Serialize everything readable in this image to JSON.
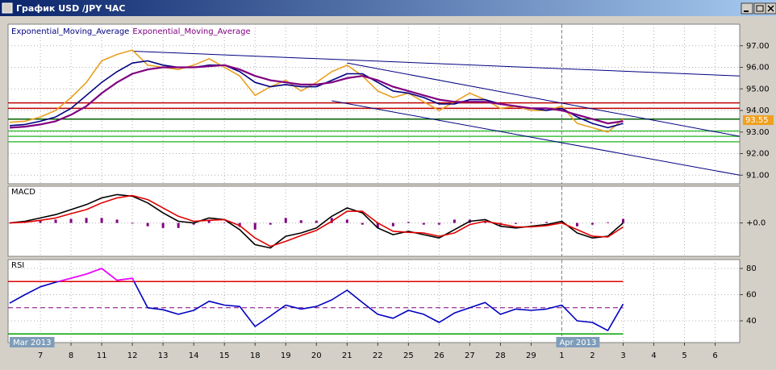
{
  "window": {
    "title": "График USD /JPY ЧАС"
  },
  "chart_data": [
    {
      "type": "line",
      "x": [
        -1,
        -0.5,
        0,
        0.5,
        1,
        1.5,
        2,
        2.5,
        3,
        3.5,
        4,
        4.5,
        5,
        5.5,
        6,
        6.5,
        7,
        7.5,
        8,
        8.5,
        9,
        9.5,
        10,
        10.5,
        11,
        11.5,
        12,
        12.5,
        13,
        13.5,
        14,
        14.5,
        15,
        15.5,
        16,
        16.5,
        17,
        17.5,
        18,
        18.5,
        19
      ],
      "series": [
        {
          "color": "#e8a020",
          "values": [
            93.45,
            93.5,
            93.7,
            94.0,
            94.6,
            95.3,
            96.3,
            96.6,
            96.8,
            96.1,
            96.0,
            95.9,
            96.1,
            96.4,
            96.0,
            95.6,
            94.7,
            95.1,
            95.4,
            94.9,
            95.3,
            95.8,
            96.1,
            95.6,
            94.9,
            94.6,
            94.8,
            94.4,
            94.0,
            94.4,
            94.8,
            94.5,
            94.1,
            94.2,
            94.0,
            94.0,
            94.2,
            93.4,
            93.2,
            93.0,
            93.6
          ]
        },
        {
          "name": "Exponential_Moving_Average",
          "color": "#000080",
          "values": [
            93.3,
            93.35,
            93.5,
            93.7,
            94.1,
            94.7,
            95.3,
            95.8,
            96.2,
            96.3,
            96.1,
            96.0,
            96.0,
            96.1,
            96.1,
            95.8,
            95.3,
            95.1,
            95.2,
            95.1,
            95.1,
            95.4,
            95.7,
            95.7,
            95.3,
            94.9,
            94.8,
            94.6,
            94.3,
            94.3,
            94.5,
            94.5,
            94.3,
            94.2,
            94.1,
            94.0,
            94.1,
            93.7,
            93.4,
            93.2,
            93.4
          ]
        },
        {
          "name": "Exponential_Moving_Average",
          "color": "#800080",
          "values": [
            93.2,
            93.25,
            93.35,
            93.5,
            93.8,
            94.2,
            94.8,
            95.3,
            95.7,
            95.9,
            96.0,
            96.0,
            96.0,
            96.05,
            96.1,
            95.9,
            95.6,
            95.4,
            95.3,
            95.2,
            95.2,
            95.3,
            95.5,
            95.6,
            95.4,
            95.1,
            94.9,
            94.7,
            94.5,
            94.4,
            94.4,
            94.4,
            94.3,
            94.2,
            94.1,
            94.1,
            94.0,
            93.8,
            93.6,
            93.4,
            93.5
          ]
        }
      ],
      "levels": [
        {
          "value": 94.35,
          "color": "#c00000"
        },
        {
          "value": 94.1,
          "color": "#c00000"
        },
        {
          "value": 93.6,
          "color": "#006000"
        },
        {
          "value": 93.05,
          "color": "#40c040"
        },
        {
          "value": 92.8,
          "color": "#40c040"
        },
        {
          "value": 92.55,
          "color": "#40c040"
        }
      ],
      "trendlines": [
        {
          "x": [
            3,
            22.8
          ],
          "y": [
            96.75,
            95.6
          ]
        },
        {
          "x": [
            10,
            22.8
          ],
          "y": [
            96.2,
            92.8
          ]
        },
        {
          "x": [
            9.5,
            22.8
          ],
          "y": [
            94.45,
            91.0
          ]
        }
      ],
      "trendline_color": "#000080",
      "last_value": 93.55,
      "last_color": "#f0a020",
      "xlim": [
        -1,
        22.8
      ],
      "ylim": [
        90.6,
        98.0
      ],
      "yticks": [
        {
          "value": 91,
          "label": "91.00"
        },
        {
          "value": 92,
          "label": "92.00"
        },
        {
          "value": 93,
          "label": "93.00"
        },
        {
          "value": 94,
          "label": "94.00"
        },
        {
          "value": 95,
          "label": "95.00"
        },
        {
          "value": 96,
          "label": "96.00"
        },
        {
          "value": 97,
          "label": "97.00"
        }
      ],
      "grid": true
    },
    {
      "type": "line",
      "title": "MACD",
      "x": [
        -1,
        -0.5,
        0,
        0.5,
        1,
        1.5,
        2,
        2.5,
        3,
        3.5,
        4,
        4.5,
        5,
        5.5,
        6,
        6.5,
        7,
        7.5,
        8,
        8.5,
        9,
        9.5,
        10,
        10.5,
        11,
        11.5,
        12,
        12.5,
        13,
        13.5,
        14,
        14.5,
        15,
        15.5,
        16,
        16.5,
        17,
        17.5,
        18,
        18.5,
        19
      ],
      "series": [
        {
          "style": "histogram",
          "color": "#800080",
          "values": [
            0.0,
            0.03,
            0.07,
            0.1,
            0.12,
            0.15,
            0.15,
            0.1,
            -0.02,
            -0.1,
            -0.15,
            -0.15,
            -0.05,
            0.07,
            0.0,
            -0.12,
            -0.2,
            -0.05,
            0.15,
            0.08,
            0.07,
            0.15,
            0.1,
            -0.05,
            -0.15,
            -0.1,
            0.03,
            -0.05,
            -0.05,
            0.1,
            0.1,
            0.05,
            -0.07,
            -0.03,
            0.02,
            0.03,
            0.05,
            -0.1,
            -0.05,
            0.02,
            0.12
          ]
        },
        {
          "color": "#000000",
          "values": [
            0.0,
            0.05,
            0.15,
            0.25,
            0.4,
            0.55,
            0.75,
            0.85,
            0.8,
            0.6,
            0.3,
            0.05,
            0.0,
            0.15,
            0.1,
            -0.2,
            -0.65,
            -0.75,
            -0.4,
            -0.3,
            -0.15,
            0.2,
            0.45,
            0.3,
            -0.15,
            -0.35,
            -0.25,
            -0.35,
            -0.45,
            -0.2,
            0.05,
            0.1,
            -0.1,
            -0.15,
            -0.1,
            -0.05,
            0.05,
            -0.3,
            -0.45,
            -0.4,
            0.0
          ]
        },
        {
          "color": "#e00000",
          "values": [
            0.0,
            0.02,
            0.08,
            0.15,
            0.28,
            0.4,
            0.6,
            0.75,
            0.82,
            0.7,
            0.45,
            0.2,
            0.05,
            0.08,
            0.1,
            -0.08,
            -0.45,
            -0.7,
            -0.55,
            -0.38,
            -0.22,
            0.05,
            0.35,
            0.35,
            0.0,
            -0.25,
            -0.28,
            -0.3,
            -0.4,
            -0.3,
            -0.05,
            0.05,
            -0.03,
            -0.12,
            -0.12,
            -0.08,
            0.0,
            -0.2,
            -0.4,
            -0.42,
            -0.12
          ]
        }
      ],
      "xlim": [
        -1,
        22.8
      ],
      "ylim": [
        -1.0,
        1.1
      ],
      "yticks": [
        {
          "value": 0,
          "label": "+0.0"
        }
      ],
      "grid": true
    },
    {
      "type": "line",
      "title": "RSI",
      "x": [
        -1,
        -0.5,
        0,
        0.5,
        1,
        1.5,
        2,
        2.5,
        3,
        3.5,
        4,
        4.5,
        5,
        5.5,
        6,
        6.5,
        7,
        7.5,
        8,
        8.5,
        9,
        9.5,
        10,
        10.5,
        11,
        11.5,
        12,
        12.5,
        13,
        13.5,
        14,
        14.5,
        15,
        15.5,
        16,
        16.5,
        17,
        17.5,
        18,
        18.5,
        19
      ],
      "series": [
        {
          "color": "#0000c0",
          "highlight_above": 70,
          "highlight_color": "#ff00ff",
          "values": [
            53.5,
            60,
            66,
            69.5,
            72.6,
            75.7,
            80,
            71,
            72.5,
            50,
            48.5,
            45,
            48,
            55,
            52,
            51,
            35.7,
            43.7,
            52,
            49,
            51,
            56,
            63.4,
            54,
            45,
            42,
            48,
            45,
            38.8,
            46,
            50,
            54,
            45,
            49,
            48,
            49,
            52,
            40,
            38.8,
            32.6,
            52.9
          ]
        }
      ],
      "levels": [
        {
          "value": 70,
          "color": "#e00000"
        },
        {
          "value": 50,
          "color": "#800080",
          "dashed": true
        },
        {
          "value": 30,
          "color": "#00a000"
        }
      ],
      "xlim": [
        -1,
        22.8
      ],
      "ylim": [
        23.4,
        86.8
      ],
      "yticks": [
        40,
        60,
        80
      ],
      "grid": true,
      "xticks": [
        {
          "value": 0,
          "label": "7"
        },
        {
          "value": 1,
          "label": "8"
        },
        {
          "value": 2,
          "label": "11"
        },
        {
          "value": 3,
          "label": "12"
        },
        {
          "value": 4,
          "label": "13"
        },
        {
          "value": 5,
          "label": "14"
        },
        {
          "value": 6,
          "label": "15"
        },
        {
          "value": 7,
          "label": "18"
        },
        {
          "value": 8,
          "label": "19"
        },
        {
          "value": 9,
          "label": "20"
        },
        {
          "value": 10,
          "label": "21"
        },
        {
          "value": 11,
          "label": "22"
        },
        {
          "value": 12,
          "label": "25"
        },
        {
          "value": 13,
          "label": "26"
        },
        {
          "value": 14,
          "label": "27"
        },
        {
          "value": 15,
          "label": "28"
        },
        {
          "value": 16,
          "label": "29"
        },
        {
          "value": 17,
          "label": "1"
        },
        {
          "value": 18,
          "label": "2"
        },
        {
          "value": 19,
          "label": "3"
        },
        {
          "value": 20,
          "label": "4"
        },
        {
          "value": 21,
          "label": "5"
        },
        {
          "value": 22,
          "label": "6"
        }
      ],
      "period_labels": [
        {
          "x": -1,
          "label": "Mar 2013"
        },
        {
          "x": 17,
          "label": "Apr 2013"
        }
      ]
    }
  ]
}
